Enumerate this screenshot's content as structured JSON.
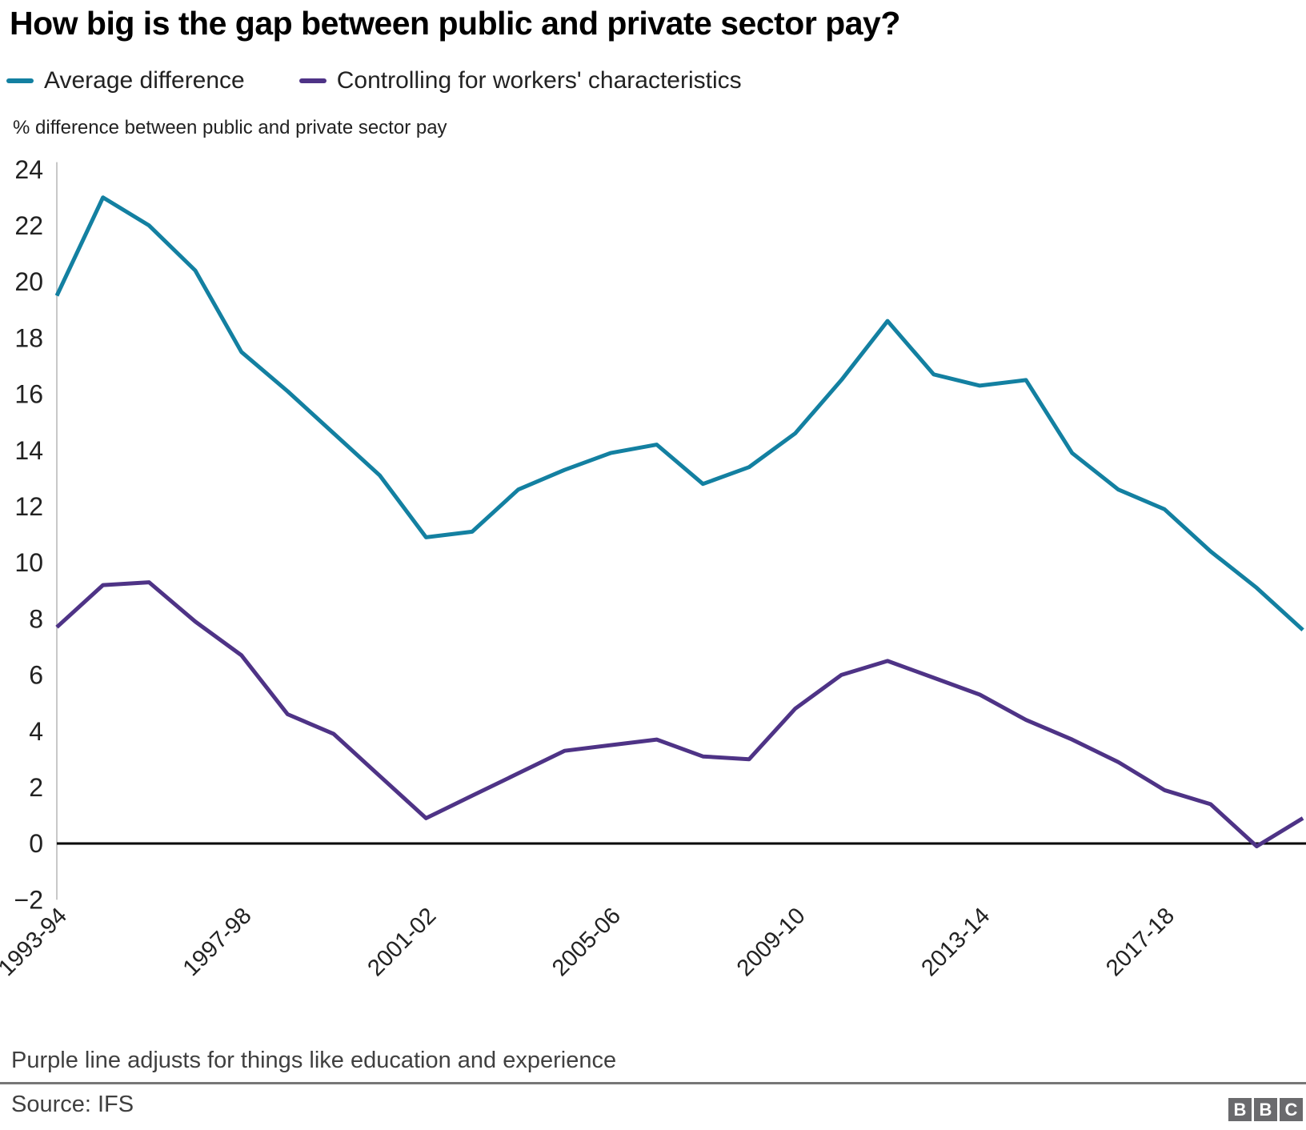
{
  "title": "How big is the gap between public and private sector pay?",
  "legend": [
    {
      "label": "Average difference",
      "color": "#1380A1"
    },
    {
      "label": "Controlling for workers' characteristics",
      "color": "#4E3386"
    }
  ],
  "unit_label": "% difference between public and private sector pay",
  "footnote": "Purple line adjusts for things like education and experience",
  "source": "Source: IFS",
  "logo": {
    "letters": [
      "B",
      "B",
      "C"
    ]
  },
  "colors": {
    "teal_line": "#1380A1",
    "purple_line": "#4E3386",
    "axis_line": "#c8c8c8",
    "zero_line": "#000000",
    "tick_text": "#222222",
    "footnote_text": "#404040",
    "divider": "#767676",
    "bbc_box": "#6a6a6d"
  },
  "chart_data": {
    "type": "line",
    "title": "How big is the gap between public and private sector pay?",
    "ylabel": "% difference between public and private sector pay",
    "xlabel": "",
    "ylim": [
      -2,
      24
    ],
    "ytick_step": 2,
    "grid": false,
    "zero_line": true,
    "legend_position": "top-left",
    "x": [
      "1993-94",
      "1994-95",
      "1995-96",
      "1996-97",
      "1997-98",
      "1998-99",
      "1999-00",
      "2000-01",
      "2001-02",
      "2002-03",
      "2003-04",
      "2004-05",
      "2005-06",
      "2006-07",
      "2007-08",
      "2008-09",
      "2009-10",
      "2010-11",
      "2011-12",
      "2012-13",
      "2013-14",
      "2014-15",
      "2015-16",
      "2016-17",
      "2017-18",
      "2018-19",
      "2019-20",
      "2020-21"
    ],
    "x_tick_labels": [
      "1993-94",
      "1997-98",
      "2001-02",
      "2005-06",
      "2009-10",
      "2013-14",
      "2017-18"
    ],
    "x_tick_indices": [
      0,
      4,
      8,
      12,
      16,
      20,
      24
    ],
    "series": [
      {
        "name": "Average difference",
        "color": "#1380A1",
        "values": [
          19.5,
          23.0,
          22.0,
          20.4,
          17.5,
          16.1,
          14.6,
          13.1,
          10.9,
          11.1,
          12.6,
          13.3,
          13.9,
          14.2,
          12.8,
          13.4,
          14.6,
          16.5,
          18.6,
          16.7,
          16.3,
          16.5,
          13.9,
          12.6,
          11.9,
          10.4,
          9.1,
          7.6
        ]
      },
      {
        "name": "Controlling for workers' characteristics",
        "color": "#4E3386",
        "values": [
          7.7,
          9.2,
          9.3,
          7.9,
          6.7,
          4.6,
          3.9,
          2.4,
          0.9,
          1.7,
          2.5,
          3.3,
          3.5,
          3.7,
          3.1,
          3.0,
          4.8,
          6.0,
          6.5,
          5.9,
          5.3,
          4.4,
          3.7,
          2.9,
          1.9,
          1.4,
          -0.1,
          0.9
        ]
      }
    ]
  }
}
